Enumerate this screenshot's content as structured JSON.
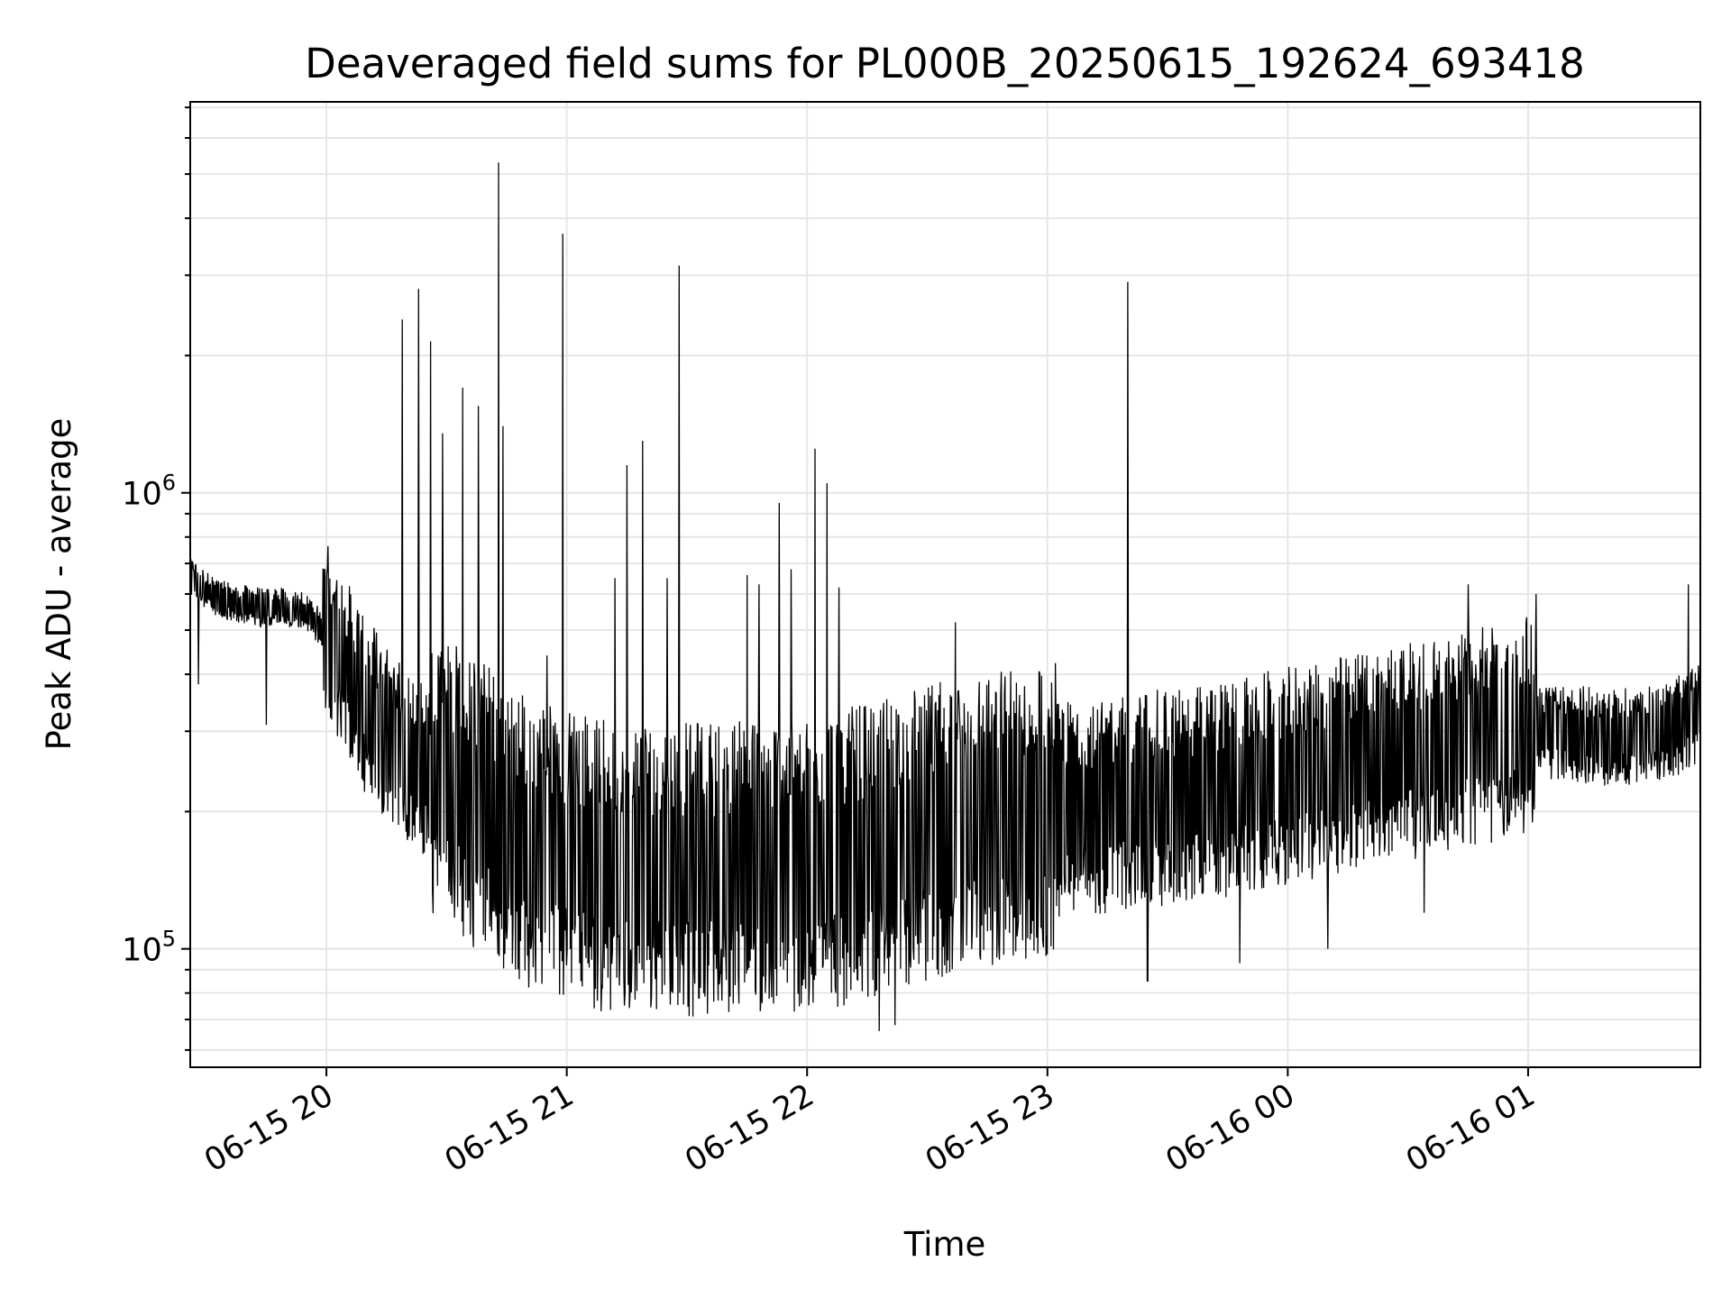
{
  "chart_data": {
    "type": "line",
    "title": "Deaveraged field sums for PL000B_20250615_192624_693418",
    "xlabel": "Time",
    "ylabel": "Peak ADU - average",
    "yscale": "log",
    "ylim": [
      55000,
      7200000
    ],
    "xlim": [
      "2025-06-15 19:26",
      "2025-06-16 01:43"
    ],
    "grid": true,
    "line_color": "#000000",
    "grid_color": "#e6e6e6",
    "x_tick_labels": [
      {
        "t": "2025-06-15 20:00",
        "label": "06-15 20"
      },
      {
        "t": "2025-06-15 21:00",
        "label": "06-15 21"
      },
      {
        "t": "2025-06-15 22:00",
        "label": "06-15 22"
      },
      {
        "t": "2025-06-15 23:00",
        "label": "06-15 23"
      },
      {
        "t": "2025-06-16 00:00",
        "label": "06-16 00"
      },
      {
        "t": "2025-06-16 01:00",
        "label": "06-16 01"
      }
    ],
    "y_major_ticks": [
      {
        "value": 100000,
        "base": "10",
        "exp": "5"
      },
      {
        "value": 1000000,
        "base": "10",
        "exp": "6"
      }
    ],
    "series": [
      {
        "points": [
          [
            "2025-06-15 19:26",
            650000
          ],
          [
            "2025-06-15 19:31",
            600000
          ],
          [
            "2025-06-15 19:38",
            570000
          ],
          [
            "2025-06-15 19:45",
            560000
          ],
          [
            "2025-06-15 19:53",
            560000
          ],
          [
            "2025-06-15 20:00",
            500000
          ],
          [
            "2025-06-15 20:10",
            340000
          ],
          [
            "2025-06-15 20:20",
            260000
          ],
          [
            "2025-06-15 20:30",
            230000
          ],
          [
            "2025-06-15 20:40",
            200000
          ],
          [
            "2025-06-15 20:50",
            170000
          ],
          [
            "2025-06-15 21:00",
            160000
          ],
          [
            "2025-06-15 21:15",
            150000
          ],
          [
            "2025-06-15 21:30",
            150000
          ],
          [
            "2025-06-15 21:45",
            150000
          ],
          [
            "2025-06-15 22:00",
            150000
          ],
          [
            "2025-06-15 22:20",
            170000
          ],
          [
            "2025-06-15 22:40",
            190000
          ],
          [
            "2025-06-15 23:00",
            200000
          ],
          [
            "2025-06-15 23:20",
            210000
          ],
          [
            "2025-06-15 23:40",
            220000
          ],
          [
            "2025-06-16 00:00",
            240000
          ],
          [
            "2025-06-16 00:20",
            260000
          ],
          [
            "2025-06-16 00:40",
            280000
          ],
          [
            "2025-06-16 01:00",
            310000
          ],
          [
            "2025-06-16 01:05",
            300000
          ],
          [
            "2025-06-16 01:20",
            290000
          ],
          [
            "2025-06-16 01:35",
            300000
          ],
          [
            "2025-06-16 01:43",
            330000
          ]
        ],
        "spikes": [
          [
            "2025-06-15 19:28",
            380000
          ],
          [
            "2025-06-15 19:45",
            310000
          ],
          [
            "2025-06-15 20:19",
            2400000
          ],
          [
            "2025-06-15 20:23",
            2800000
          ],
          [
            "2025-06-15 20:26",
            2150000
          ],
          [
            "2025-06-15 20:29",
            1350000
          ],
          [
            "2025-06-15 20:34",
            1700000
          ],
          [
            "2025-06-15 20:38",
            1550000
          ],
          [
            "2025-06-15 20:43",
            5300000
          ],
          [
            "2025-06-15 20:44",
            1400000
          ],
          [
            "2025-06-15 20:47",
            190000
          ],
          [
            "2025-06-15 20:55",
            440000
          ],
          [
            "2025-06-15 20:59",
            3700000
          ],
          [
            "2025-06-15 21:00",
            92000
          ],
          [
            "2025-06-15 21:12",
            650000
          ],
          [
            "2025-06-15 21:15",
            1150000
          ],
          [
            "2025-06-15 21:19",
            1300000
          ],
          [
            "2025-06-15 21:25",
            650000
          ],
          [
            "2025-06-15 21:28",
            3150000
          ],
          [
            "2025-06-15 21:33",
            78000
          ],
          [
            "2025-06-15 21:45",
            660000
          ],
          [
            "2025-06-15 21:48",
            630000
          ],
          [
            "2025-06-15 21:53",
            950000
          ],
          [
            "2025-06-15 21:56",
            680000
          ],
          [
            "2025-06-15 22:02",
            1250000
          ],
          [
            "2025-06-15 22:05",
            1050000
          ],
          [
            "2025-06-15 22:08",
            620000
          ],
          [
            "2025-06-15 22:18",
            66000
          ],
          [
            "2025-06-15 22:22",
            68000
          ],
          [
            "2025-06-15 22:37",
            520000
          ],
          [
            "2025-06-15 22:50",
            130000
          ],
          [
            "2025-06-15 23:20",
            2900000
          ],
          [
            "2025-06-15 23:25",
            85000
          ],
          [
            "2025-06-15 23:48",
            93000
          ],
          [
            "2025-06-16 00:10",
            100000
          ],
          [
            "2025-06-16 00:34",
            120000
          ],
          [
            "2025-06-16 00:45",
            630000
          ],
          [
            "2025-06-16 01:02",
            600000
          ],
          [
            "2025-06-16 01:40",
            630000
          ]
        ]
      }
    ]
  }
}
